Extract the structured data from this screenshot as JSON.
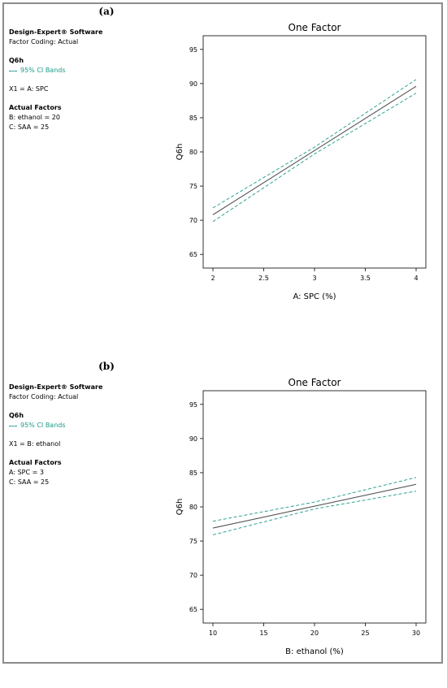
{
  "panels": [
    {
      "label": "(a)",
      "info": {
        "software": "Design-Expert® Software",
        "coding": "Factor Coding: Actual",
        "response": "Q6h",
        "ci_label": "95% CI Bands",
        "x1": "X1 = A: SPC",
        "actual_header": "Actual Factors",
        "factors": [
          "B: ethanol = 20",
          "C: SAA = 25"
        ]
      },
      "colors": {
        "fit": "#555555",
        "ci": "#1a9a8a"
      }
    },
    {
      "label": "(b)",
      "info": {
        "software": "Design-Expert® Software",
        "coding": "Factor Coding: Actual",
        "response": "Q6h",
        "ci_label": "95% CI Bands",
        "x1": "X1 = B: ethanol",
        "actual_header": "Actual Factors",
        "factors": [
          "A: SPC = 3",
          "C: SAA = 25"
        ]
      },
      "colors": {
        "fit": "#555555",
        "ci": "#1a9a8a"
      }
    }
  ],
  "chart_data": [
    {
      "type": "line",
      "title": "One Factor",
      "xlabel": "A: SPC (%)",
      "ylabel": "Q6h",
      "xlim": [
        2,
        4
      ],
      "ylim": [
        63,
        97
      ],
      "xticks": [
        2,
        2.5,
        3,
        3.5,
        4
      ],
      "xtick_labels": [
        "2",
        "2.5",
        "3",
        "3.5",
        "4"
      ],
      "yticks": [
        65,
        70,
        75,
        80,
        85,
        90,
        95
      ],
      "ytick_labels": [
        "65",
        "70",
        "75",
        "80",
        "85",
        "90",
        "95"
      ],
      "grid": false,
      "series": [
        {
          "role": "fit",
          "x": [
            2,
            4
          ],
          "y": [
            70.8,
            89.6
          ]
        },
        {
          "role": "ci-upper",
          "x": [
            2,
            3,
            4
          ],
          "y": [
            71.8,
            80.7,
            90.6
          ]
        },
        {
          "role": "ci-lower",
          "x": [
            2,
            3,
            4
          ],
          "y": [
            69.8,
            79.7,
            88.6
          ]
        }
      ]
    },
    {
      "type": "line",
      "title": "One Factor",
      "xlabel": "B: ethanol (%)",
      "ylabel": "Q6h",
      "xlim": [
        10,
        30
      ],
      "ylim": [
        63,
        97
      ],
      "xticks": [
        10,
        15,
        20,
        25,
        30
      ],
      "xtick_labels": [
        "10",
        "15",
        "20",
        "25",
        "30"
      ],
      "yticks": [
        65,
        70,
        75,
        80,
        85,
        90,
        95
      ],
      "ytick_labels": [
        "65",
        "70",
        "75",
        "80",
        "85",
        "90",
        "95"
      ],
      "grid": false,
      "series": [
        {
          "role": "fit",
          "x": [
            10,
            30
          ],
          "y": [
            76.9,
            83.3
          ]
        },
        {
          "role": "ci-upper",
          "x": [
            10,
            20,
            30
          ],
          "y": [
            77.9,
            80.7,
            84.3
          ]
        },
        {
          "role": "ci-lower",
          "x": [
            10,
            20,
            30
          ],
          "y": [
            75.9,
            79.7,
            82.3
          ]
        }
      ]
    }
  ]
}
